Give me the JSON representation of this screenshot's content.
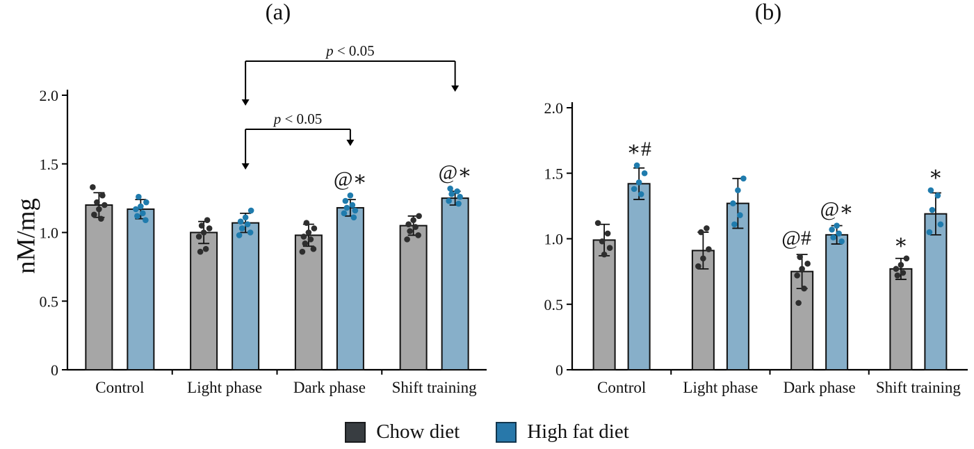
{
  "figure": {
    "ylabel": "nM/mg",
    "panels": [
      {
        "title": "(a)"
      },
      {
        "title": "(b)"
      }
    ],
    "legend": [
      {
        "label": "Chow diet",
        "color": "#383d41"
      },
      {
        "label": "High fat diet",
        "color": "#2878aa"
      }
    ]
  },
  "colors": {
    "chow_bar": "#a6a6a6",
    "chow_dot": "#2e2e2e",
    "hfd_bar": "#87afc9",
    "hfd_dot": "#1f7bad",
    "axis": "#000000"
  },
  "chart_data": [
    {
      "panel": "(a)",
      "type": "bar",
      "categories": [
        "Control",
        "Light phase",
        "Dark phase",
        "Shift training"
      ],
      "ylabel": "nM/mg",
      "ylim": [
        0,
        2.0
      ],
      "yticks": [
        0,
        0.5,
        1.0,
        1.5,
        2.0
      ],
      "ytick_labels": [
        "0",
        "0.5",
        "1.0",
        "1.5",
        "2.0"
      ],
      "grid": false,
      "series": [
        {
          "name": "Chow diet",
          "values": [
            1.2,
            1.0,
            0.98,
            1.05
          ],
          "errors": [
            0.09,
            0.08,
            0.08,
            0.07
          ],
          "points": [
            [
              1.33,
              1.27,
              1.22,
              1.2,
              1.17,
              1.13,
              1.1
            ],
            [
              1.09,
              1.05,
              1.03,
              1.0,
              0.97,
              0.88,
              0.86
            ],
            [
              1.07,
              1.03,
              1.0,
              0.97,
              0.95,
              0.92,
              0.88,
              0.86
            ],
            [
              1.12,
              1.09,
              1.06,
              1.04,
              1.01,
              0.98,
              0.95
            ]
          ]
        },
        {
          "name": "High fat diet",
          "values": [
            1.17,
            1.07,
            1.18,
            1.25
          ],
          "errors": [
            0.07,
            0.07,
            0.06,
            0.05
          ],
          "points": [
            [
              1.26,
              1.22,
              1.19,
              1.17,
              1.14,
              1.12,
              1.09
            ],
            [
              1.16,
              1.11,
              1.08,
              1.06,
              1.03,
              1.0,
              0.98
            ],
            [
              1.27,
              1.23,
              1.2,
              1.18,
              1.16,
              1.14,
              1.11
            ],
            [
              1.32,
              1.3,
              1.28,
              1.26,
              1.23,
              1.21
            ]
          ]
        }
      ],
      "annotations": [
        {
          "series": 1,
          "cat": 2,
          "text": "@∗"
        },
        {
          "series": 1,
          "cat": 3,
          "text": "@∗"
        }
      ],
      "brackets": [
        {
          "label_italic": "p",
          "label_rest": " < 0.05",
          "from": {
            "series": 1,
            "cat": 1
          },
          "to": {
            "series": 1,
            "cat": 3
          },
          "line_y": 48,
          "from_tip_y": 112,
          "to_tip_y": 92
        },
        {
          "label_italic": "p",
          "label_rest": " < 0.05",
          "from": {
            "series": 1,
            "cat": 1
          },
          "to": {
            "series": 1,
            "cat": 2
          },
          "line_y": 146,
          "from_tip_y": 204,
          "to_tip_y": 170
        }
      ]
    },
    {
      "panel": "(b)",
      "type": "bar",
      "categories": [
        "Control",
        "Light phase",
        "Dark phase",
        "Shift training"
      ],
      "ylim": [
        0,
        2.0
      ],
      "yticks": [
        0,
        0.5,
        1.0,
        1.5,
        2.0
      ],
      "ytick_labels": [
        "0",
        "0.5",
        "1.0",
        "1.5",
        "2.0"
      ],
      "grid": false,
      "series": [
        {
          "name": "Chow diet",
          "values": [
            0.99,
            0.91,
            0.75,
            0.77
          ],
          "errors": [
            0.12,
            0.14,
            0.13,
            0.08
          ],
          "points": [
            [
              1.12,
              1.04,
              0.98,
              0.93,
              0.88
            ],
            [
              1.08,
              1.05,
              0.92,
              0.85,
              0.79
            ],
            [
              0.86,
              0.81,
              0.77,
              0.72,
              0.62,
              0.51
            ],
            [
              0.85,
              0.8,
              0.77,
              0.74,
              0.72
            ]
          ]
        },
        {
          "name": "High fat diet",
          "values": [
            1.42,
            1.27,
            1.03,
            1.19
          ],
          "errors": [
            0.12,
            0.19,
            0.07,
            0.16
          ],
          "points": [
            [
              1.56,
              1.5,
              1.43,
              1.38,
              1.34
            ],
            [
              1.46,
              1.37,
              1.27,
              1.18,
              1.11
            ],
            [
              1.1,
              1.07,
              1.04,
              1.01,
              0.98
            ],
            [
              1.37,
              1.33,
              1.22,
              1.11,
              1.05
            ]
          ]
        }
      ],
      "annotations": [
        {
          "series": 1,
          "cat": 0,
          "text": "∗#"
        },
        {
          "series": 0,
          "cat": 2,
          "text": "@#",
          "dx": -8
        },
        {
          "series": 1,
          "cat": 2,
          "text": "@∗"
        },
        {
          "series": 0,
          "cat": 3,
          "text": "∗"
        },
        {
          "series": 1,
          "cat": 3,
          "text": "∗"
        }
      ],
      "brackets": []
    }
  ]
}
